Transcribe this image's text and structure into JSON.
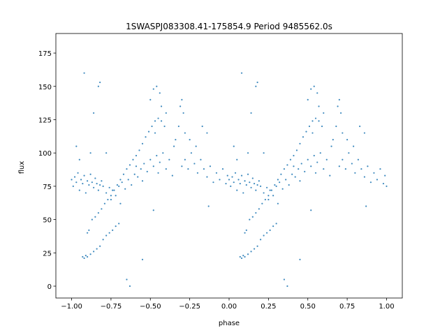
{
  "chart_data": {
    "type": "scatter",
    "title": "1SWASPJ083308.41-175854.9 Period 9485562.0s",
    "x_label": "phase",
    "y_label": "flux",
    "color": "#1f77b4",
    "xlim": [
      -1.1,
      1.1
    ],
    "ylim": [
      -8.9,
      189.7
    ],
    "xticks": [
      {
        "value": -1,
        "label": "−1.00"
      },
      {
        "value": -0.75,
        "label": "−0.75"
      },
      {
        "value": -0.5,
        "label": "−0.50"
      },
      {
        "value": -0.25,
        "label": "−0.25"
      },
      {
        "value": 0,
        "label": "0.00"
      },
      {
        "value": 0.25,
        "label": "0.25"
      },
      {
        "value": 0.5,
        "label": "0.50"
      },
      {
        "value": 0.75,
        "label": "0.75"
      },
      {
        "value": 1,
        "label": "1.00"
      }
    ],
    "yticks": [
      0,
      25,
      50,
      75,
      100,
      125,
      150,
      175
    ],
    "x": [
      -1.0,
      -0.99,
      -0.98,
      -0.97,
      -0.96,
      -0.95,
      -0.94,
      -0.93,
      -0.92,
      -0.91,
      -0.9,
      -0.89,
      -0.88,
      -0.87,
      -0.86,
      -0.85,
      -0.84,
      -0.83,
      -0.82,
      -0.81,
      -0.8,
      -0.95,
      -0.88,
      -0.83,
      -0.82,
      -0.92,
      -0.86,
      -0.97,
      -0.93,
      -0.92,
      -0.91,
      -0.9,
      -0.88,
      -0.86,
      -0.84,
      -0.82,
      -0.8,
      -0.78,
      -0.76,
      -0.74,
      -0.72,
      -0.7,
      -0.9,
      -0.89,
      -0.87,
      -0.85,
      -0.83,
      -0.81,
      -0.79,
      -0.77,
      -0.75,
      -0.73,
      -0.71,
      -0.69,
      -0.67,
      -0.65,
      -0.63,
      -0.61,
      -0.59,
      -0.57,
      -0.55,
      -0.53,
      -0.51,
      -0.49,
      -0.47,
      -0.45,
      -0.43,
      -0.41,
      -0.78,
      -0.76,
      -0.75,
      -0.74,
      -0.72,
      -0.7,
      -0.69,
      -0.68,
      -0.66,
      -0.64,
      -0.62,
      -0.6,
      -0.59,
      -0.58,
      -0.56,
      -0.55,
      -0.54,
      -0.52,
      -0.5,
      -0.48,
      -0.46,
      -0.45,
      -0.44,
      -0.42,
      -0.4,
      -0.38,
      -0.36,
      -0.35,
      -0.5,
      -0.48,
      -0.46,
      -0.44,
      -0.43,
      -0.4,
      -0.47,
      -0.34,
      -0.32,
      -0.31,
      -0.3,
      -0.29,
      -0.28,
      -0.3,
      -0.28,
      -0.26,
      -0.24,
      -0.22,
      -0.2,
      -0.18,
      -0.16,
      -0.25,
      -0.21,
      -0.17,
      -0.14,
      -0.14,
      -0.12,
      -0.1,
      -0.08,
      -0.06,
      -0.04,
      -0.02,
      -0.01,
      -0.65,
      -0.63,
      -0.48,
      -0.13,
      -0.78,
      -0.55,
      0.0,
      0.01,
      0.02,
      0.03,
      0.04,
      0.05,
      0.06,
      0.07,
      0.08,
      0.09,
      0.1,
      0.11,
      0.12,
      0.13,
      0.14,
      0.15,
      0.16,
      0.17,
      0.18,
      0.19,
      0.2,
      0.05,
      0.12,
      0.17,
      0.18,
      0.08,
      0.14,
      0.03,
      0.07,
      0.08,
      0.09,
      0.1,
      0.12,
      0.14,
      0.16,
      0.18,
      0.2,
      0.22,
      0.24,
      0.26,
      0.28,
      0.3,
      0.1,
      0.11,
      0.13,
      0.15,
      0.17,
      0.19,
      0.21,
      0.23,
      0.25,
      0.27,
      0.29,
      0.31,
      0.33,
      0.35,
      0.37,
      0.39,
      0.41,
      0.43,
      0.45,
      0.47,
      0.49,
      0.51,
      0.53,
      0.55,
      0.57,
      0.59,
      0.22,
      0.24,
      0.25,
      0.26,
      0.28,
      0.3,
      0.31,
      0.32,
      0.34,
      0.36,
      0.38,
      0.4,
      0.41,
      0.42,
      0.44,
      0.45,
      0.46,
      0.48,
      0.5,
      0.52,
      0.54,
      0.55,
      0.56,
      0.58,
      0.6,
      0.62,
      0.64,
      0.65,
      0.5,
      0.52,
      0.54,
      0.56,
      0.57,
      0.6,
      0.53,
      0.66,
      0.68,
      0.69,
      0.7,
      0.71,
      0.72,
      0.7,
      0.72,
      0.74,
      0.76,
      0.78,
      0.8,
      0.82,
      0.84,
      0.75,
      0.79,
      0.83,
      0.86,
      0.86,
      0.88,
      0.9,
      0.92,
      0.94,
      0.96,
      0.98,
      0.99,
      1.0,
      0.35,
      0.37,
      0.52,
      0.87,
      0.22,
      0.45
    ],
    "y": [
      80,
      75,
      82,
      78,
      85,
      72,
      80,
      77,
      83,
      70,
      79,
      76,
      84,
      78,
      74,
      81,
      77,
      72,
      76,
      79,
      75,
      95,
      100,
      150,
      153,
      160,
      130,
      105,
      22,
      21,
      23,
      22,
      24,
      26,
      28,
      30,
      35,
      38,
      40,
      42,
      45,
      47,
      40,
      42,
      50,
      52,
      55,
      58,
      62,
      65,
      68,
      72,
      76,
      80,
      84,
      88,
      91,
      95,
      98,
      102,
      107,
      112,
      116,
      120,
      124,
      126,
      124,
      120,
      70,
      74,
      65,
      72,
      68,
      75,
      62,
      78,
      73,
      80,
      76,
      84,
      90,
      82,
      88,
      79,
      92,
      86,
      95,
      90,
      98,
      85,
      93,
      100,
      88,
      95,
      83,
      105,
      140,
      148,
      150,
      145,
      135,
      130,
      115,
      110,
      120,
      135,
      140,
      130,
      115,
      90,
      95,
      88,
      100,
      92,
      85,
      95,
      88,
      110,
      105,
      120,
      115,
      82,
      90,
      78,
      85,
      80,
      88,
      77,
      83,
      5,
      0,
      57,
      60,
      100,
      20,
      80,
      75,
      82,
      78,
      85,
      72,
      80,
      77,
      83,
      70,
      79,
      76,
      84,
      78,
      74,
      81,
      77,
      72,
      76,
      79,
      75,
      95,
      100,
      150,
      153,
      160,
      130,
      105,
      22,
      21,
      23,
      22,
      24,
      26,
      28,
      30,
      35,
      38,
      40,
      42,
      45,
      47,
      40,
      42,
      50,
      52,
      55,
      58,
      62,
      65,
      68,
      72,
      76,
      80,
      84,
      88,
      91,
      95,
      98,
      102,
      107,
      112,
      116,
      120,
      124,
      126,
      124,
      120,
      70,
      74,
      65,
      72,
      68,
      75,
      62,
      78,
      73,
      80,
      76,
      84,
      90,
      82,
      88,
      79,
      92,
      86,
      95,
      90,
      98,
      85,
      93,
      100,
      88,
      95,
      83,
      105,
      140,
      148,
      150,
      145,
      135,
      130,
      115,
      110,
      120,
      135,
      140,
      130,
      115,
      90,
      95,
      88,
      100,
      92,
      85,
      95,
      88,
      110,
      105,
      120,
      115,
      82,
      90,
      78,
      85,
      80,
      88,
      77,
      83,
      75,
      5,
      0,
      57,
      60,
      100,
      20
    ]
  }
}
